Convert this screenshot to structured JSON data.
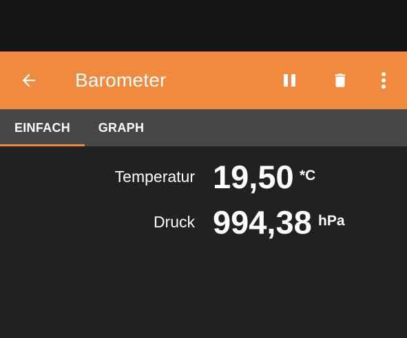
{
  "app_bar": {
    "title": "Barometer",
    "back_icon": "arrow-left-icon",
    "actions": [
      {
        "name": "pause",
        "icon": "pause-icon"
      },
      {
        "name": "delete",
        "icon": "trash-icon"
      },
      {
        "name": "more",
        "icon": "more-vertical-icon"
      }
    ],
    "background": "#ef8a3e"
  },
  "tabs": [
    {
      "label": "EINFACH",
      "selected": true
    },
    {
      "label": "GRAPH",
      "selected": false
    }
  ],
  "readings": [
    {
      "label": "Temperatur",
      "value": "19,50",
      "unit": "*C"
    },
    {
      "label": "Druck",
      "value": "994,38",
      "unit": "hPa"
    }
  ],
  "colors": {
    "accent": "#ef8a3e",
    "background": "#212121",
    "tab_bar": "#474747",
    "status_bar": "#151515"
  }
}
